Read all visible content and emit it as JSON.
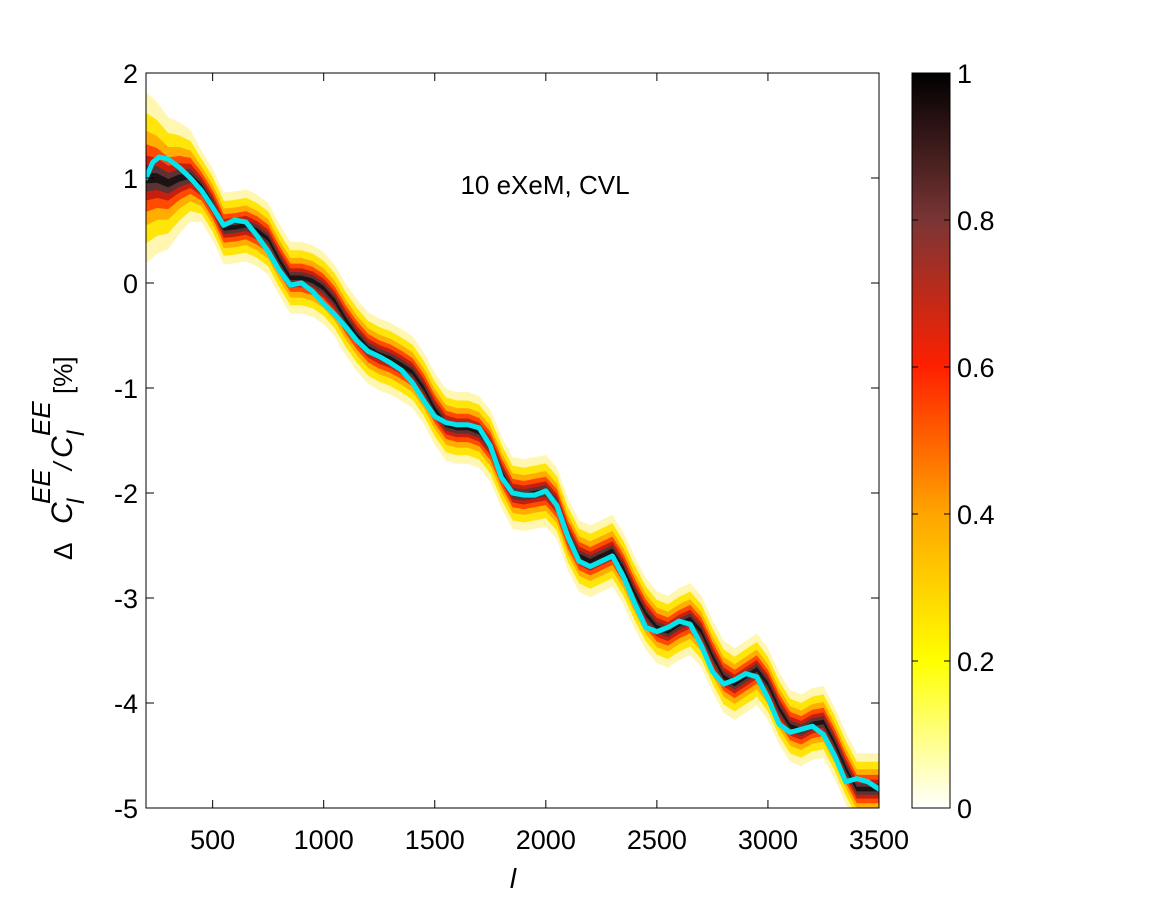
{
  "chart_data": {
    "type": "heatmap",
    "annotation": "10 eXeM,  CVL",
    "xlabel": "l",
    "ylabel": {
      "delta": "Δ",
      "c1": "C",
      "c1_sub": "l",
      "c1_sup": "EE",
      "slash": "/",
      "c2": "C",
      "c2_sub": "l",
      "c2_sup": "EE",
      "unit": "[%]"
    },
    "xlim": [
      200,
      3500
    ],
    "ylim": [
      -5,
      2
    ],
    "x_ticks": [
      500,
      1000,
      1500,
      2000,
      2500,
      3000,
      3500
    ],
    "y_ticks": [
      -5,
      -4,
      -3,
      -2,
      -1,
      0,
      1,
      2
    ],
    "x_tick_labels": [
      "500",
      "1000",
      "1500",
      "2000",
      "2500",
      "3000",
      "3500"
    ],
    "y_tick_labels": [
      "-5",
      "-4",
      "-3",
      "-2",
      "-1",
      "0",
      "1",
      "2"
    ],
    "grid": false,
    "colorbar": {
      "range": [
        0,
        1
      ],
      "ticks": [
        0,
        0.2,
        0.4,
        0.6,
        0.8,
        1
      ],
      "tick_labels": [
        "0",
        "0.2",
        "0.4",
        "0.6",
        "0.8",
        "1"
      ],
      "colormap": "hot_reversed",
      "colors": [
        "#ffffff",
        "#ffff00",
        "#ffa500",
        "#ff2000",
        "#7a3535",
        "#000000"
      ]
    },
    "band_center": {
      "x": [
        200,
        250,
        300,
        350,
        400,
        450,
        500,
        550,
        600,
        650,
        700,
        750,
        800,
        850,
        900,
        950,
        1000,
        1050,
        1100,
        1150,
        1200,
        1250,
        1300,
        1350,
        1400,
        1450,
        1500,
        1550,
        1600,
        1650,
        1700,
        1750,
        1800,
        1850,
        1900,
        1950,
        2000,
        2050,
        2100,
        2150,
        2200,
        2250,
        2300,
        2350,
        2400,
        2450,
        2500,
        2550,
        2600,
        2650,
        2700,
        2750,
        2800,
        2850,
        2900,
        2950,
        3000,
        3050,
        3100,
        3150,
        3200,
        3250,
        3300,
        3350,
        3400,
        3450,
        3500
      ],
      "y": [
        1.0,
        1.0,
        0.95,
        1.0,
        1.02,
        0.92,
        0.75,
        0.52,
        0.53,
        0.55,
        0.5,
        0.42,
        0.22,
        0.05,
        0.05,
        0.02,
        -0.05,
        -0.17,
        -0.35,
        -0.5,
        -0.62,
        -0.68,
        -0.72,
        -0.78,
        -0.85,
        -1.0,
        -1.2,
        -1.35,
        -1.38,
        -1.38,
        -1.42,
        -1.55,
        -1.8,
        -2.0,
        -2.02,
        -2.0,
        -1.98,
        -2.1,
        -2.4,
        -2.6,
        -2.65,
        -2.6,
        -2.55,
        -2.72,
        -2.95,
        -3.15,
        -3.28,
        -3.32,
        -3.25,
        -3.2,
        -3.32,
        -3.55,
        -3.75,
        -3.82,
        -3.75,
        -3.68,
        -3.82,
        -4.05,
        -4.22,
        -4.26,
        -4.2,
        -4.18,
        -4.38,
        -4.62,
        -4.82,
        -4.82,
        -4.82
      ],
      "half_width": 0.18
    },
    "series": [
      {
        "color": "#00e5ee",
        "x": [
          200,
          230,
          260,
          300,
          350,
          400,
          450,
          500,
          550,
          600,
          650,
          700,
          750,
          800,
          850,
          900,
          950,
          1000,
          1050,
          1100,
          1150,
          1200,
          1250,
          1300,
          1350,
          1400,
          1450,
          1500,
          1550,
          1600,
          1650,
          1700,
          1750,
          1800,
          1850,
          1900,
          1950,
          2000,
          2050,
          2100,
          2150,
          2200,
          2250,
          2300,
          2350,
          2400,
          2450,
          2500,
          2550,
          2600,
          2650,
          2700,
          2750,
          2800,
          2850,
          2900,
          2950,
          3000,
          3050,
          3100,
          3150,
          3200,
          3250,
          3300,
          3350,
          3400,
          3450,
          3500
        ],
        "y": [
          1.0,
          1.15,
          1.2,
          1.18,
          1.1,
          1.0,
          0.88,
          0.72,
          0.55,
          0.6,
          0.58,
          0.45,
          0.3,
          0.12,
          -0.02,
          0.0,
          -0.08,
          -0.2,
          -0.3,
          -0.42,
          -0.55,
          -0.65,
          -0.7,
          -0.76,
          -0.83,
          -0.95,
          -1.12,
          -1.27,
          -1.33,
          -1.35,
          -1.35,
          -1.38,
          -1.55,
          -1.85,
          -2.0,
          -2.02,
          -2.02,
          -1.98,
          -2.12,
          -2.42,
          -2.65,
          -2.7,
          -2.65,
          -2.6,
          -2.8,
          -3.05,
          -3.28,
          -3.32,
          -3.28,
          -3.22,
          -3.25,
          -3.45,
          -3.7,
          -3.82,
          -3.78,
          -3.72,
          -3.75,
          -3.95,
          -4.2,
          -4.28,
          -4.25,
          -4.22,
          -4.3,
          -4.5,
          -4.75,
          -4.72,
          -4.75,
          -4.82
        ]
      }
    ]
  }
}
